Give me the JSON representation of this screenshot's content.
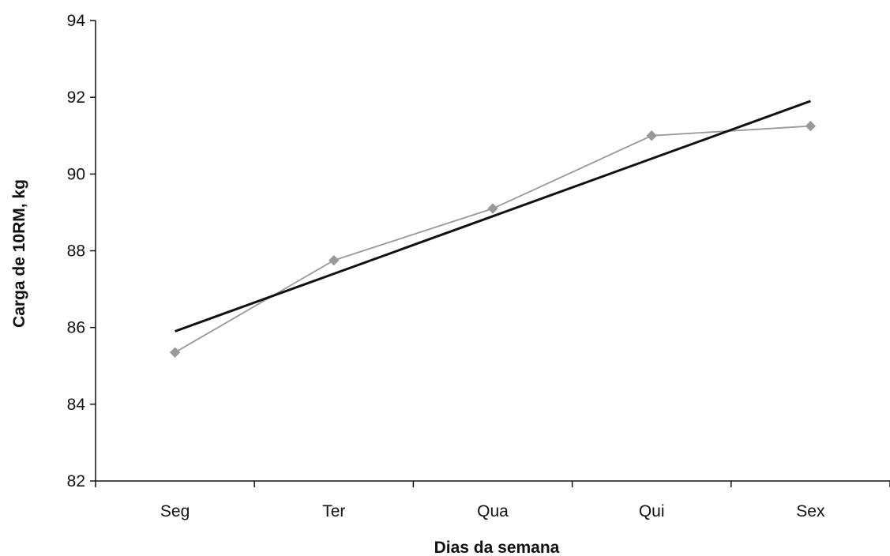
{
  "chart_data": {
    "type": "line",
    "categories": [
      "Seg",
      "Ter",
      "Qua",
      "Qui",
      "Sex"
    ],
    "xlabel": "Dias da semana",
    "ylabel": "Carga de 10RM, kg",
    "ylim": [
      82,
      94
    ],
    "yticks": [
      82,
      84,
      86,
      88,
      90,
      92,
      94
    ],
    "grid": false,
    "series": [
      {
        "values": [
          85.35,
          87.75,
          89.1,
          91.0,
          91.25
        ],
        "color": "#999999",
        "marker": "diamond"
      },
      {
        "kind": "trendline",
        "values": [
          85.9,
          87.4,
          88.9,
          90.4,
          91.9
        ],
        "color": "#111111"
      }
    ]
  }
}
